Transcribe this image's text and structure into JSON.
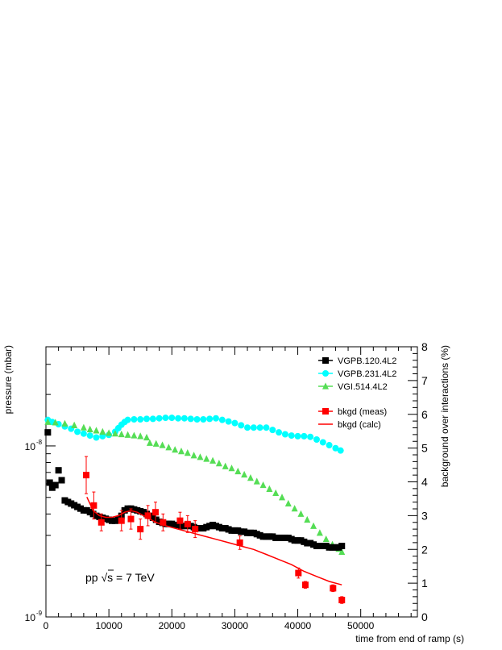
{
  "chart_data": {
    "type": "scatter",
    "x_axis": {
      "label": "time from end of ramp (s)",
      "range": [
        0,
        59000
      ],
      "ticks": [
        0,
        10000,
        20000,
        30000,
        40000,
        50000
      ],
      "tick_labels": [
        "0",
        "10000",
        "20000",
        "30000",
        "40000",
        "50000"
      ]
    },
    "y_left": {
      "label": "pressure (mbar)",
      "scale": "log",
      "range": [
        1e-09,
        3.8e-08
      ],
      "decade_labels": [
        {
          "value": 1e-08,
          "label": "10",
          "exp": "-8"
        },
        {
          "value": 1e-09,
          "label": "10",
          "exp": "-9"
        }
      ]
    },
    "y_right": {
      "label": "background over interactions (%)",
      "range": [
        0,
        8
      ],
      "ticks": [
        0,
        1,
        2,
        3,
        4,
        5,
        6,
        7,
        8
      ],
      "tick_labels": [
        "0",
        "1",
        "2",
        "3",
        "4",
        "5",
        "6",
        "7",
        "8"
      ]
    },
    "annotation": {
      "prefix": "pp ",
      "sqrt": "√",
      "rest": "s = 7 TeV"
    },
    "legend_position": "top-right",
    "series": [
      {
        "name": "VGPB.120.4L2",
        "axis": "left",
        "marker": "square",
        "color": "#000000",
        "points": [
          [
            300,
            1.2e-08
          ],
          [
            600,
            6.1e-09
          ],
          [
            1000,
            5.7e-09
          ],
          [
            1500,
            5.9e-09
          ],
          [
            2000,
            7.2e-09
          ],
          [
            2500,
            6.3e-09
          ],
          [
            3000,
            4.8e-09
          ],
          [
            3500,
            4.7e-09
          ],
          [
            4000,
            4.6e-09
          ],
          [
            4500,
            4.5e-09
          ],
          [
            5000,
            4.4e-09
          ],
          [
            5500,
            4.3e-09
          ],
          [
            6000,
            4.2e-09
          ],
          [
            6500,
            4.2e-09
          ],
          [
            7000,
            4.1e-09
          ],
          [
            7500,
            4e-09
          ],
          [
            8000,
            3.9e-09
          ],
          [
            8500,
            3.85e-09
          ],
          [
            9000,
            3.8e-09
          ],
          [
            9500,
            3.75e-09
          ],
          [
            10000,
            3.7e-09
          ],
          [
            10500,
            3.65e-09
          ],
          [
            11000,
            3.65e-09
          ],
          [
            11500,
            3.7e-09
          ],
          [
            12000,
            3.9e-09
          ],
          [
            12500,
            4.2e-09
          ],
          [
            13000,
            4.3e-09
          ],
          [
            13500,
            4.3e-09
          ],
          [
            14000,
            4.25e-09
          ],
          [
            14500,
            4.2e-09
          ],
          [
            15000,
            4.15e-09
          ],
          [
            15500,
            4.1e-09
          ],
          [
            16000,
            4e-09
          ],
          [
            16500,
            3.9e-09
          ],
          [
            17000,
            3.8e-09
          ],
          [
            17500,
            3.7e-09
          ],
          [
            18000,
            3.6e-09
          ],
          [
            18500,
            3.55e-09
          ],
          [
            19000,
            3.5e-09
          ],
          [
            19500,
            3.5e-09
          ],
          [
            20000,
            3.5e-09
          ],
          [
            20500,
            3.45e-09
          ],
          [
            21000,
            3.45e-09
          ],
          [
            21500,
            3.4e-09
          ],
          [
            22000,
            3.4e-09
          ],
          [
            22500,
            3.45e-09
          ],
          [
            23000,
            3.4e-09
          ],
          [
            23500,
            3.35e-09
          ],
          [
            24000,
            3.3e-09
          ],
          [
            24500,
            3.3e-09
          ],
          [
            25000,
            3.3e-09
          ],
          [
            25500,
            3.35e-09
          ],
          [
            26000,
            3.4e-09
          ],
          [
            26500,
            3.45e-09
          ],
          [
            27000,
            3.4e-09
          ],
          [
            27500,
            3.35e-09
          ],
          [
            28000,
            3.3e-09
          ],
          [
            28500,
            3.3e-09
          ],
          [
            29000,
            3.25e-09
          ],
          [
            29500,
            3.2e-09
          ],
          [
            30000,
            3.2e-09
          ],
          [
            30500,
            3.2e-09
          ],
          [
            31000,
            3.15e-09
          ],
          [
            31500,
            3.15e-09
          ],
          [
            32000,
            3.1e-09
          ],
          [
            32500,
            3.1e-09
          ],
          [
            33000,
            3.1e-09
          ],
          [
            33500,
            3.05e-09
          ],
          [
            34000,
            3e-09
          ],
          [
            34500,
            2.95e-09
          ],
          [
            35000,
            2.95e-09
          ],
          [
            35500,
            2.95e-09
          ],
          [
            36000,
            2.95e-09
          ],
          [
            36500,
            2.9e-09
          ],
          [
            37000,
            2.9e-09
          ],
          [
            37500,
            2.9e-09
          ],
          [
            38000,
            2.9e-09
          ],
          [
            38500,
            2.9e-09
          ],
          [
            39000,
            2.85e-09
          ],
          [
            39500,
            2.8e-09
          ],
          [
            40000,
            2.8e-09
          ],
          [
            40500,
            2.8e-09
          ],
          [
            41000,
            2.75e-09
          ],
          [
            41500,
            2.7e-09
          ],
          [
            42000,
            2.7e-09
          ],
          [
            42500,
            2.65e-09
          ],
          [
            43000,
            2.6e-09
          ],
          [
            43500,
            2.6e-09
          ],
          [
            44000,
            2.6e-09
          ],
          [
            44500,
            2.6e-09
          ],
          [
            45000,
            2.55e-09
          ],
          [
            45500,
            2.55e-09
          ],
          [
            46000,
            2.55e-09
          ],
          [
            46500,
            2.55e-09
          ],
          [
            47000,
            2.6e-09
          ]
        ]
      },
      {
        "name": "VGPB.231.4L2",
        "axis": "left",
        "marker": "circle",
        "color": "#00ffff",
        "points": [
          [
            300,
            1.42e-08
          ],
          [
            1000,
            1.38e-08
          ],
          [
            2000,
            1.34e-08
          ],
          [
            3000,
            1.3e-08
          ],
          [
            4000,
            1.26e-08
          ],
          [
            5000,
            1.21e-08
          ],
          [
            6000,
            1.18e-08
          ],
          [
            7000,
            1.15e-08
          ],
          [
            8000,
            1.12e-08
          ],
          [
            9000,
            1.14e-08
          ],
          [
            10000,
            1.16e-08
          ],
          [
            11000,
            1.21e-08
          ],
          [
            11500,
            1.27e-08
          ],
          [
            12000,
            1.33e-08
          ],
          [
            12500,
            1.38e-08
          ],
          [
            13000,
            1.42e-08
          ],
          [
            14000,
            1.43e-08
          ],
          [
            15000,
            1.43e-08
          ],
          [
            16000,
            1.44e-08
          ],
          [
            17000,
            1.44e-08
          ],
          [
            18000,
            1.45e-08
          ],
          [
            19000,
            1.46e-08
          ],
          [
            20000,
            1.46e-08
          ],
          [
            21000,
            1.45e-08
          ],
          [
            22000,
            1.45e-08
          ],
          [
            23000,
            1.44e-08
          ],
          [
            24000,
            1.43e-08
          ],
          [
            25000,
            1.43e-08
          ],
          [
            26000,
            1.44e-08
          ],
          [
            27000,
            1.45e-08
          ],
          [
            28000,
            1.42e-08
          ],
          [
            29000,
            1.39e-08
          ],
          [
            30000,
            1.36e-08
          ],
          [
            31000,
            1.32e-08
          ],
          [
            32000,
            1.28e-08
          ],
          [
            33000,
            1.28e-08
          ],
          [
            34000,
            1.28e-08
          ],
          [
            35000,
            1.28e-08
          ],
          [
            36000,
            1.24e-08
          ],
          [
            37000,
            1.2e-08
          ],
          [
            38000,
            1.17e-08
          ],
          [
            39000,
            1.15e-08
          ],
          [
            40000,
            1.14e-08
          ],
          [
            41000,
            1.14e-08
          ],
          [
            42000,
            1.13e-08
          ],
          [
            43000,
            1.09e-08
          ],
          [
            44000,
            1.05e-08
          ],
          [
            45000,
            1.01e-08
          ],
          [
            46000,
            9.7e-09
          ],
          [
            46800,
            9.4e-09
          ]
        ]
      },
      {
        "name": "VGI.514.4L2",
        "axis": "left",
        "marker": "triangle",
        "color": "#55dd55",
        "points": [
          [
            300,
            1.38e-08
          ],
          [
            1500,
            1.37e-08
          ],
          [
            3000,
            1.35e-08
          ],
          [
            4500,
            1.32e-08
          ],
          [
            6000,
            1.28e-08
          ],
          [
            7000,
            1.25e-08
          ],
          [
            8000,
            1.23e-08
          ],
          [
            9000,
            1.21e-08
          ],
          [
            10000,
            1.19e-08
          ],
          [
            11000,
            1.18e-08
          ],
          [
            12000,
            1.17e-08
          ],
          [
            13000,
            1.16e-08
          ],
          [
            14000,
            1.15e-08
          ],
          [
            15000,
            1.14e-08
          ],
          [
            16000,
            1.12e-08
          ],
          [
            16500,
            1.04e-08
          ],
          [
            17500,
            1.03e-08
          ],
          [
            18500,
            1.01e-08
          ],
          [
            19500,
            9.8e-09
          ],
          [
            20500,
            9.5e-09
          ],
          [
            21500,
            9.3e-09
          ],
          [
            22500,
            9.1e-09
          ],
          [
            23500,
            8.8e-09
          ],
          [
            24500,
            8.6e-09
          ],
          [
            25500,
            8.4e-09
          ],
          [
            26500,
            8.2e-09
          ],
          [
            27500,
            7.9e-09
          ],
          [
            28500,
            7.6e-09
          ],
          [
            29500,
            7.4e-09
          ],
          [
            30500,
            7.1e-09
          ],
          [
            31500,
            6.8e-09
          ],
          [
            32500,
            6.5e-09
          ],
          [
            33500,
            6.2e-09
          ],
          [
            34500,
            5.9e-09
          ],
          [
            35500,
            5.6e-09
          ],
          [
            36500,
            5.3e-09
          ],
          [
            37500,
            5e-09
          ],
          [
            38500,
            4.6e-09
          ],
          [
            39500,
            4.3e-09
          ],
          [
            40500,
            4e-09
          ],
          [
            41500,
            3.7e-09
          ],
          [
            42500,
            3.4e-09
          ],
          [
            43500,
            3.1e-09
          ],
          [
            44500,
            2.85e-09
          ],
          [
            45500,
            2.65e-09
          ],
          [
            46500,
            2.5e-09
          ],
          [
            47000,
            2.4e-09
          ]
        ]
      },
      {
        "name": "bkgd (meas)",
        "axis": "right",
        "marker": "square",
        "color": "#ff0000",
        "points": [
          [
            6400,
            4.2,
            0.55
          ],
          [
            7600,
            3.3,
            0.4
          ],
          [
            8800,
            2.8,
            0.25
          ],
          [
            12000,
            2.85,
            0.3
          ],
          [
            13500,
            2.9,
            0.3
          ],
          [
            15000,
            2.6,
            0.3
          ],
          [
            16200,
            3.0,
            0.3
          ],
          [
            17400,
            3.1,
            0.3
          ],
          [
            18600,
            2.8,
            0.25
          ],
          [
            21300,
            2.85,
            0.25
          ],
          [
            22500,
            2.75,
            0.25
          ],
          [
            23700,
            2.6,
            0.25
          ],
          [
            30800,
            2.2,
            0.2
          ],
          [
            40100,
            1.3,
            0.15
          ],
          [
            41200,
            0.95,
            0.1
          ],
          [
            45600,
            0.85,
            0.1
          ],
          [
            47000,
            0.5,
            0.1
          ]
        ]
      },
      {
        "name": "bkgd (calc)",
        "axis": "right",
        "marker": "line",
        "color": "#ff0000",
        "points": [
          [
            6500,
            3.55
          ],
          [
            7500,
            3.15
          ],
          [
            8500,
            3.0
          ],
          [
            9500,
            2.95
          ],
          [
            10500,
            2.95
          ],
          [
            11500,
            3.0
          ],
          [
            12500,
            3.1
          ],
          [
            13500,
            3.15
          ],
          [
            14500,
            3.1
          ],
          [
            15500,
            3.0
          ],
          [
            16500,
            2.9
          ],
          [
            17500,
            2.8
          ],
          [
            19000,
            2.7
          ],
          [
            21000,
            2.6
          ],
          [
            23000,
            2.5
          ],
          [
            25000,
            2.4
          ],
          [
            27000,
            2.3
          ],
          [
            29000,
            2.2
          ],
          [
            31000,
            2.1
          ],
          [
            33000,
            2.0
          ],
          [
            35000,
            1.85
          ],
          [
            37000,
            1.7
          ],
          [
            39000,
            1.55
          ],
          [
            41000,
            1.35
          ],
          [
            43000,
            1.2
          ],
          [
            45000,
            1.05
          ],
          [
            47000,
            0.95
          ]
        ]
      }
    ]
  }
}
